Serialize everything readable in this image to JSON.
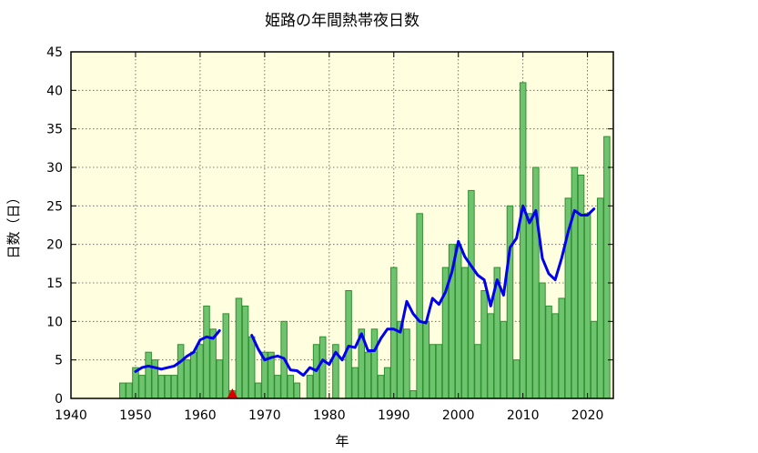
{
  "chart_data": {
    "type": "bar",
    "title": "姫路の年間熱帯夜日数",
    "xlabel": "年",
    "ylabel": "日数（日）",
    "xlim": [
      1940,
      2024
    ],
    "ylim": [
      0,
      45
    ],
    "xticks": [
      1940,
      1950,
      1960,
      1970,
      1980,
      1990,
      2000,
      2010,
      2020
    ],
    "yticks": [
      0,
      5,
      10,
      15,
      20,
      25,
      30,
      35,
      40,
      45
    ],
    "grid": true,
    "colors": {
      "plot_background": "#ffffe0",
      "bar_fill": "#6ec46e",
      "bar_stroke": "#2f8f2f",
      "moving_average": "#0000ee",
      "marker": "#dd0000"
    },
    "series": [
      {
        "type": "bar",
        "points": [
          [
            1948,
            2
          ],
          [
            1949,
            2
          ],
          [
            1950,
            4
          ],
          [
            1951,
            3
          ],
          [
            1952,
            6
          ],
          [
            1953,
            5
          ],
          [
            1954,
            3
          ],
          [
            1955,
            3
          ],
          [
            1956,
            3
          ],
          [
            1957,
            7
          ],
          [
            1958,
            5
          ],
          [
            1959,
            6
          ],
          [
            1960,
            7
          ],
          [
            1961,
            12
          ],
          [
            1962,
            9
          ],
          [
            1963,
            5
          ],
          [
            1964,
            11
          ],
          [
            1965,
            1
          ],
          [
            1966,
            13
          ],
          [
            1967,
            12
          ],
          [
            1968,
            8
          ],
          [
            1969,
            2
          ],
          [
            1970,
            6
          ],
          [
            1971,
            6
          ],
          [
            1972,
            3
          ],
          [
            1973,
            10
          ],
          [
            1974,
            3
          ],
          [
            1975,
            2
          ],
          [
            1976,
            0
          ],
          [
            1977,
            3
          ],
          [
            1978,
            7
          ],
          [
            1979,
            8
          ],
          [
            1980,
            0
          ],
          [
            1981,
            7
          ],
          [
            1982,
            0
          ],
          [
            1983,
            14
          ],
          [
            1984,
            4
          ],
          [
            1985,
            9
          ],
          [
            1986,
            6
          ],
          [
            1987,
            9
          ],
          [
            1988,
            3
          ],
          [
            1989,
            4
          ],
          [
            1990,
            17
          ],
          [
            1991,
            10
          ],
          [
            1992,
            9
          ],
          [
            1993,
            1
          ],
          [
            1994,
            24
          ],
          [
            1995,
            10
          ],
          [
            1996,
            7
          ],
          [
            1997,
            7
          ],
          [
            1998,
            17
          ],
          [
            1999,
            20
          ],
          [
            2000,
            20
          ],
          [
            2001,
            17
          ],
          [
            2002,
            27
          ],
          [
            2003,
            7
          ],
          [
            2004,
            14
          ],
          [
            2005,
            11
          ],
          [
            2006,
            17
          ],
          [
            2007,
            10
          ],
          [
            2008,
            25
          ],
          [
            2009,
            5
          ],
          [
            2010,
            41
          ],
          [
            2011,
            24
          ],
          [
            2012,
            30
          ],
          [
            2013,
            15
          ],
          [
            2014,
            12
          ],
          [
            2015,
            11
          ],
          [
            2016,
            13
          ],
          [
            2017,
            26
          ],
          [
            2018,
            30
          ],
          [
            2019,
            29
          ],
          [
            2020,
            24
          ],
          [
            2021,
            10
          ],
          [
            2022,
            26
          ],
          [
            2023,
            34
          ]
        ]
      },
      {
        "type": "line",
        "segments": [
          [
            [
              1950,
              3.5
            ],
            [
              1951,
              4.0
            ],
            [
              1952,
              4.2
            ],
            [
              1953,
              4.0
            ],
            [
              1954,
              3.8
            ],
            [
              1955,
              4.0
            ],
            [
              1956,
              4.2
            ],
            [
              1957,
              4.8
            ],
            [
              1958,
              5.5
            ],
            [
              1959,
              6.0
            ],
            [
              1960,
              7.6
            ],
            [
              1961,
              8.0
            ],
            [
              1962,
              7.8
            ],
            [
              1963,
              8.8
            ]
          ],
          [
            [
              1968,
              8.2
            ],
            [
              1969,
              6.4
            ],
            [
              1970,
              5.0
            ],
            [
              1971,
              5.3
            ],
            [
              1972,
              5.5
            ],
            [
              1973,
              5.2
            ],
            [
              1974,
              3.7
            ],
            [
              1975,
              3.6
            ],
            [
              1976,
              3.0
            ],
            [
              1977,
              4.0
            ],
            [
              1978,
              3.6
            ],
            [
              1979,
              5.0
            ],
            [
              1980,
              4.4
            ],
            [
              1981,
              6.0
            ],
            [
              1982,
              5.0
            ],
            [
              1983,
              6.8
            ],
            [
              1984,
              6.6
            ],
            [
              1985,
              8.4
            ],
            [
              1986,
              6.2
            ],
            [
              1987,
              6.2
            ],
            [
              1988,
              7.8
            ],
            [
              1989,
              9.0
            ],
            [
              1990,
              9.0
            ],
            [
              1991,
              8.6
            ],
            [
              1992,
              12.6
            ],
            [
              1993,
              11.0
            ],
            [
              1994,
              10.0
            ],
            [
              1995,
              9.8
            ],
            [
              1996,
              13.0
            ],
            [
              1997,
              12.2
            ],
            [
              1998,
              13.8
            ],
            [
              1999,
              16.4
            ],
            [
              2000,
              20.4
            ],
            [
              2001,
              18.4
            ],
            [
              2002,
              17.2
            ],
            [
              2003,
              16.0
            ],
            [
              2004,
              15.4
            ],
            [
              2005,
              12.0
            ],
            [
              2006,
              15.4
            ],
            [
              2007,
              13.4
            ],
            [
              2008,
              19.6
            ],
            [
              2009,
              20.8
            ],
            [
              2010,
              25.0
            ],
            [
              2011,
              22.8
            ],
            [
              2012,
              24.4
            ],
            [
              2013,
              18.2
            ],
            [
              2014,
              16.2
            ],
            [
              2015,
              15.4
            ],
            [
              2016,
              18.2
            ],
            [
              2017,
              21.6
            ],
            [
              2018,
              24.4
            ],
            [
              2019,
              23.8
            ],
            [
              2020,
              23.8
            ],
            [
              2021,
              24.6
            ]
          ]
        ]
      },
      {
        "type": "marker",
        "shape": "triangle",
        "x": 1965,
        "y": 0
      }
    ]
  }
}
